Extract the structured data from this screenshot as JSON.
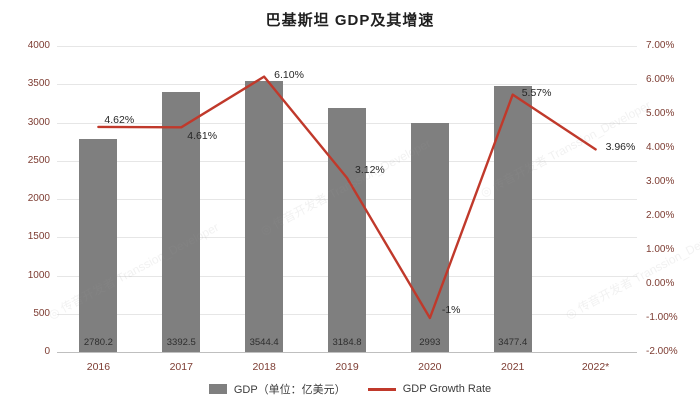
{
  "title": "巴基斯坦 GDP及其增速",
  "watermark": {
    "text": "◎ 传音开发者 Transsion_Developer"
  },
  "legend": [
    {
      "type": "bar",
      "label": "GDP（单位：亿美元）",
      "color": "#7f7f7f"
    },
    {
      "type": "line",
      "label": "GDP Growth Rate",
      "color": "#c0392b"
    }
  ],
  "colors": {
    "bar": "#7f7f7f",
    "line": "#c0392b",
    "axis_text": "#7d3c32",
    "grid": "#e6e6e6"
  },
  "chart_data": {
    "type": "bar",
    "subtype": "bar+line combo, dual axis",
    "title": "巴基斯坦 GDP及其增速",
    "categories": [
      "2016",
      "2017",
      "2018",
      "2019",
      "2020",
      "2021",
      "2022*"
    ],
    "series": [
      {
        "name": "GDP（单位：亿美元）",
        "type": "bar",
        "axis": "left",
        "color": "#7f7f7f",
        "values": [
          2780.2,
          3392.5,
          3544.4,
          3184.8,
          2993,
          3477.4,
          null
        ],
        "labels": [
          "2780.2",
          "3392.5",
          "3544.4",
          "3184.8",
          "2993",
          "3477.4",
          ""
        ]
      },
      {
        "name": "GDP Growth Rate",
        "type": "line",
        "axis": "right",
        "color": "#c0392b",
        "values": [
          4.62,
          4.61,
          6.1,
          3.12,
          -1,
          5.57,
          3.96
        ],
        "labels": [
          "4.62%",
          "4.61%",
          "6.10%",
          "3.12%",
          "-1%",
          "5.57%",
          "3.96%"
        ]
      }
    ],
    "left_axis": {
      "min": 0,
      "max": 4000,
      "step": 500,
      "ticks": [
        "0",
        "500",
        "1000",
        "1500",
        "2000",
        "2500",
        "3000",
        "3500",
        "4000"
      ]
    },
    "right_axis": {
      "min": -2,
      "max": 7,
      "step": 1,
      "ticks": [
        "-2.00%",
        "-1.00%",
        "0.00%",
        "1.00%",
        "2.00%",
        "3.00%",
        "4.00%",
        "5.00%",
        "6.00%",
        "7.00%"
      ]
    },
    "grid": true,
    "legend_position": "bottom"
  }
}
